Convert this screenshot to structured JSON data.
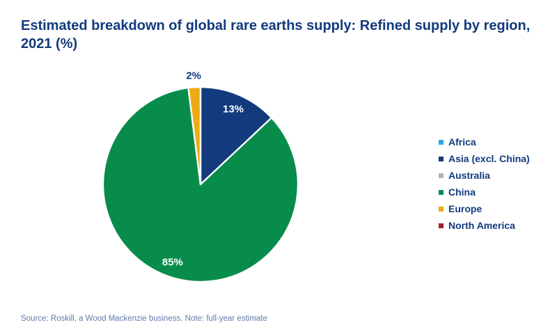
{
  "title": "Estimated breakdown of global rare earths supply: Refined supply by region, 2021 (%)",
  "source_note": "Source: Roskill, a Wood Mackenzie business. Note: full-year estimate",
  "colors": {
    "background": "#ffffff",
    "title_text": "#123a7d",
    "legend_text": "#123a7d",
    "source_text": "#5e7aa8",
    "label_inside": "#ffffff",
    "label_outside": "#123a7d",
    "slice_separator": "#ffffff"
  },
  "chart_data": {
    "type": "pie",
    "title": "Estimated breakdown of global rare earths supply: Refined supply by region, 2021 (%)",
    "unit": "%",
    "start_angle_deg": 0,
    "direction": "clockwise",
    "legend_position": "right",
    "slices": [
      {
        "label": "Africa",
        "value": 0,
        "color": "#29abe2"
      },
      {
        "label": "Asia (excl. China)",
        "value": 13,
        "color": "#123a7d"
      },
      {
        "label": "Australia",
        "value": 0,
        "color": "#b3b3b3"
      },
      {
        "label": "China",
        "value": 85,
        "color": "#078c4b"
      },
      {
        "label": "Europe",
        "value": 2,
        "color": "#edaa13"
      },
      {
        "label": "North America",
        "value": 0,
        "color": "#a21b32"
      }
    ]
  }
}
